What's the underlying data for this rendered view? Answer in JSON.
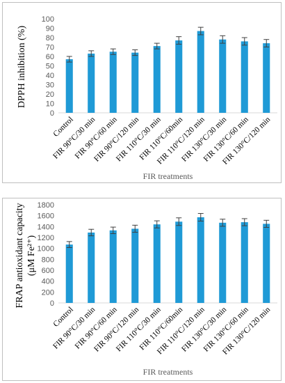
{
  "chart_data": [
    {
      "type": "bar",
      "categories": [
        "Control",
        "FIR 90°C/30 min",
        "FIR 90°C/60 min",
        "FIR 90°C/120 min",
        "FIR 110°C/30 min",
        "FIR 110°C/60min",
        "FIR 110°C/120 min",
        "FIR 130°C/30 min",
        "FIR 130°C/60 min",
        "FIR 130°C/120 min"
      ],
      "values": [
        57,
        63,
        65,
        64,
        71,
        77,
        87,
        78,
        76,
        74
      ],
      "errors": [
        3,
        3,
        3,
        3,
        3,
        4,
        4,
        4,
        4,
        4
      ],
      "xlabel": "FIR treatments",
      "ylabel": "DPPH  inhibition (%)",
      "ylim": [
        0,
        100
      ],
      "yticks": [
        0,
        10,
        20,
        30,
        40,
        50,
        60,
        70,
        80,
        90,
        100
      ],
      "color": "#1f9ad6",
      "grid": false
    },
    {
      "type": "bar",
      "categories": [
        "Control",
        "FIR 90°C/30 min",
        "FIR 90°C/60 min",
        "FIR 90°C/120 min",
        "FIR 110°C/30 min",
        "FIR 110°C/60min",
        "FIR 110°C/120 min",
        "FIR 130°C/30 min",
        "FIR 130°C/60 min",
        "FIR 130°C/120 min"
      ],
      "values": [
        1070,
        1290,
        1330,
        1360,
        1440,
        1490,
        1570,
        1470,
        1480,
        1450
      ],
      "errors": [
        55,
        60,
        60,
        65,
        65,
        70,
        70,
        65,
        65,
        65
      ],
      "xlabel": "FIR treatments",
      "ylabel_line1": "FRAP antioxidant capacity",
      "ylabel_line2": "(μM Fe²⁺)",
      "ylim": [
        0,
        1800
      ],
      "yticks": [
        0,
        200,
        400,
        600,
        800,
        1000,
        1200,
        1400,
        1600,
        1800
      ],
      "color": "#1f9ad6",
      "grid": false
    }
  ]
}
